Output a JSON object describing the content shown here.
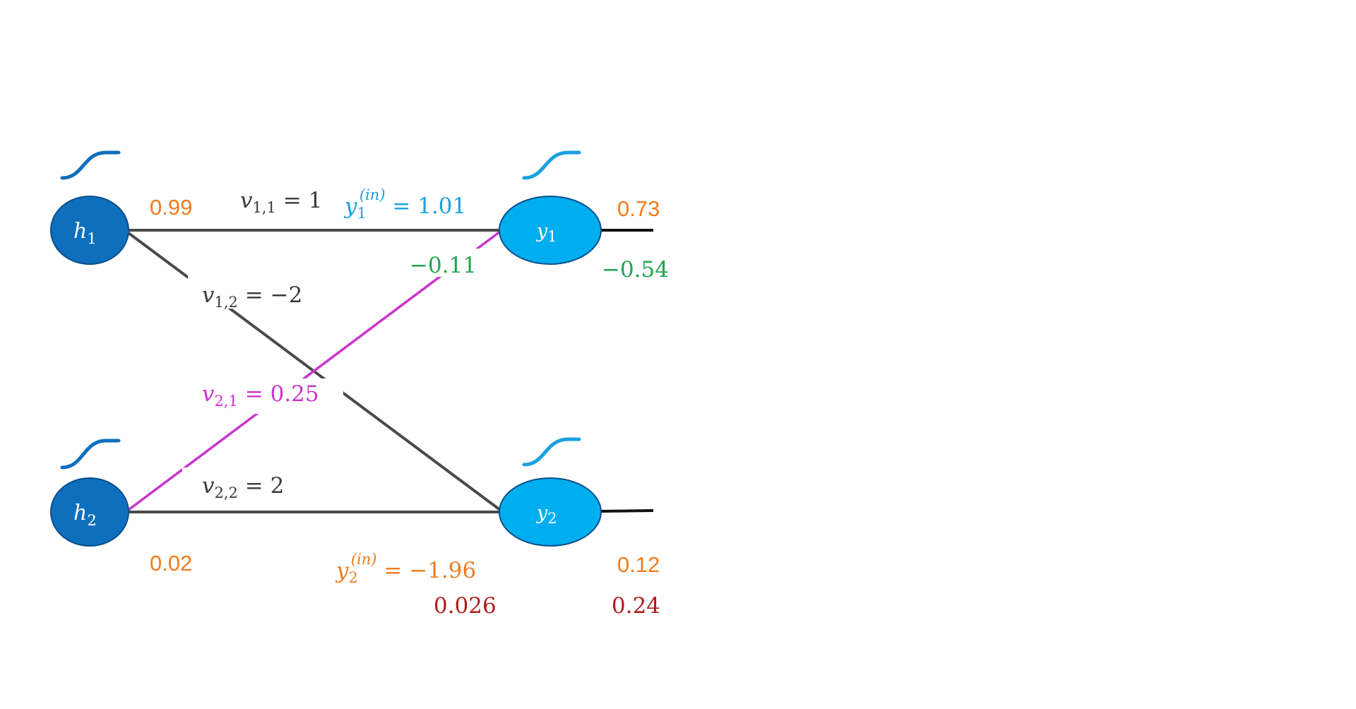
{
  "colors": {
    "hidden_node": "#0e6fbd",
    "output_node": "#00aeef",
    "orange": "#f07c1d",
    "green": "#1ea64b",
    "red": "#b01a1a",
    "magenta": "#cc33cc",
    "cyan": "#1aa0e0",
    "edge": "#4a4a4a",
    "text_dark": "#3a3a3a"
  },
  "nodes": {
    "h1": {
      "name": "h",
      "sub": "1"
    },
    "h2": {
      "name": "h",
      "sub": "2"
    },
    "y1": {
      "name": "y",
      "sub": "1"
    },
    "y2": {
      "name": "y",
      "sub": "2"
    }
  },
  "weights": {
    "v11": {
      "sym": "v",
      "sub": "1,1",
      "rhs": " = 1"
    },
    "v12": {
      "sym": "v",
      "sub": "1,2",
      "rhs": " = −2"
    },
    "v21": {
      "sym": "v",
      "sub": "2,1",
      "rhs": " = 0.25"
    },
    "v22": {
      "sym": "v",
      "sub": "2,2",
      "rhs": " = 2"
    }
  },
  "inputs": {
    "y1_in": {
      "sym": "y",
      "sub": "1",
      "sup": "(in)",
      "rhs": " =  1.01"
    },
    "y2_in": {
      "sym": "y",
      "sub": "2",
      "sup": "(in)",
      "rhs": " =  −1.96"
    }
  },
  "values": {
    "h1_out": "0.99",
    "h2_out": "0.02",
    "y1_out": "0.73",
    "y2_out": "0.12",
    "grad_y1": "−0.54",
    "grad_y1_in": "−0.11",
    "grad_y2_in": "0.026",
    "grad_y2": "0.24"
  }
}
